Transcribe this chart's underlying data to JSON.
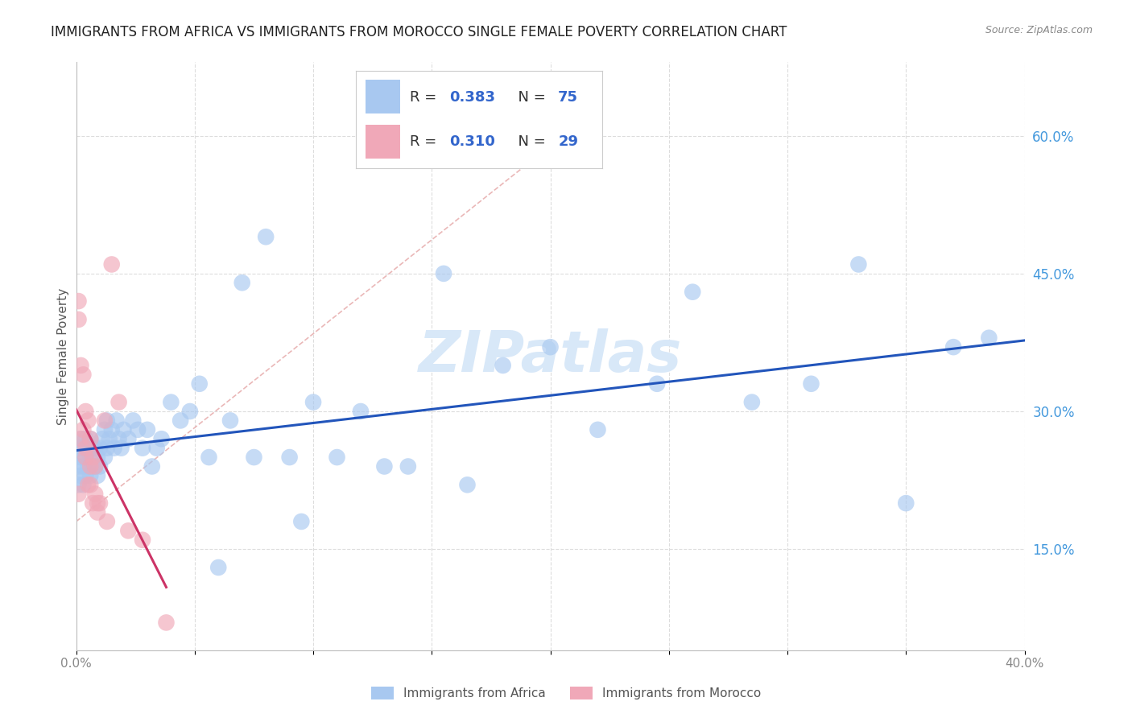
{
  "title": "IMMIGRANTS FROM AFRICA VS IMMIGRANTS FROM MOROCCO SINGLE FEMALE POVERTY CORRELATION CHART",
  "source": "Source: ZipAtlas.com",
  "ylabel": "Single Female Poverty",
  "legend_label_1": "Immigrants from Africa",
  "legend_label_2": "Immigrants from Morocco",
  "R1": 0.383,
  "N1": 75,
  "R2": 0.31,
  "N2": 29,
  "xlim": [
    0.0,
    0.4
  ],
  "ylim": [
    0.04,
    0.68
  ],
  "yticks_right": [
    0.15,
    0.3,
    0.45,
    0.6
  ],
  "ytick_labels_right": [
    "15.0%",
    "30.0%",
    "45.0%",
    "60.0%"
  ],
  "color_africa": "#a8c8f0",
  "color_morocco": "#f0a8b8",
  "color_trendline_africa": "#2255bb",
  "color_trendline_morocco": "#cc3366",
  "color_refline": "#e8b0b0",
  "color_grid": "#dddddd",
  "color_title": "#222222",
  "color_ytick_right": "#4499dd",
  "color_legend_R": "#3366cc",
  "color_legend_N": "#333333",
  "background_color": "#ffffff",
  "title_fontsize": 12,
  "axis_label_fontsize": 11,
  "tick_fontsize": 11,
  "legend_fontsize": 13,
  "africa_x": [
    0.001,
    0.001,
    0.001,
    0.002,
    0.002,
    0.002,
    0.003,
    0.003,
    0.003,
    0.004,
    0.004,
    0.004,
    0.005,
    0.005,
    0.006,
    0.006,
    0.006,
    0.007,
    0.007,
    0.008,
    0.008,
    0.009,
    0.009,
    0.01,
    0.01,
    0.011,
    0.012,
    0.012,
    0.013,
    0.013,
    0.014,
    0.015,
    0.016,
    0.017,
    0.018,
    0.019,
    0.02,
    0.022,
    0.024,
    0.026,
    0.028,
    0.03,
    0.032,
    0.034,
    0.036,
    0.04,
    0.044,
    0.048,
    0.052,
    0.056,
    0.06,
    0.065,
    0.07,
    0.075,
    0.08,
    0.09,
    0.095,
    0.1,
    0.11,
    0.12,
    0.13,
    0.14,
    0.155,
    0.165,
    0.18,
    0.2,
    0.22,
    0.245,
    0.26,
    0.285,
    0.31,
    0.33,
    0.35,
    0.37,
    0.385
  ],
  "africa_y": [
    0.22,
    0.24,
    0.26,
    0.23,
    0.25,
    0.27,
    0.22,
    0.24,
    0.26,
    0.23,
    0.25,
    0.27,
    0.24,
    0.26,
    0.23,
    0.25,
    0.27,
    0.24,
    0.26,
    0.24,
    0.26,
    0.23,
    0.25,
    0.24,
    0.26,
    0.27,
    0.25,
    0.28,
    0.26,
    0.29,
    0.27,
    0.28,
    0.26,
    0.29,
    0.27,
    0.26,
    0.28,
    0.27,
    0.29,
    0.28,
    0.26,
    0.28,
    0.24,
    0.26,
    0.27,
    0.31,
    0.29,
    0.3,
    0.33,
    0.25,
    0.13,
    0.29,
    0.44,
    0.25,
    0.49,
    0.25,
    0.18,
    0.31,
    0.25,
    0.3,
    0.24,
    0.24,
    0.45,
    0.22,
    0.35,
    0.37,
    0.28,
    0.33,
    0.43,
    0.31,
    0.33,
    0.46,
    0.2,
    0.37,
    0.38
  ],
  "morocco_x": [
    0.001,
    0.001,
    0.001,
    0.002,
    0.002,
    0.003,
    0.003,
    0.004,
    0.004,
    0.004,
    0.005,
    0.005,
    0.006,
    0.006,
    0.006,
    0.007,
    0.007,
    0.008,
    0.008,
    0.009,
    0.009,
    0.01,
    0.012,
    0.013,
    0.015,
    0.018,
    0.022,
    0.028,
    0.038
  ],
  "morocco_y": [
    0.42,
    0.4,
    0.21,
    0.35,
    0.27,
    0.34,
    0.28,
    0.3,
    0.26,
    0.25,
    0.29,
    0.22,
    0.27,
    0.22,
    0.24,
    0.25,
    0.2,
    0.24,
    0.21,
    0.2,
    0.19,
    0.2,
    0.29,
    0.18,
    0.46,
    0.31,
    0.17,
    0.16,
    0.07
  ],
  "watermark": "ZIPatlas",
  "watermark_color": "#d8e8f8",
  "bottom_legend_items": [
    {
      "color": "#a8c8f0",
      "label": "Immigrants from Africa"
    },
    {
      "color": "#f0a8b8",
      "label": "Immigrants from Morocco"
    }
  ]
}
